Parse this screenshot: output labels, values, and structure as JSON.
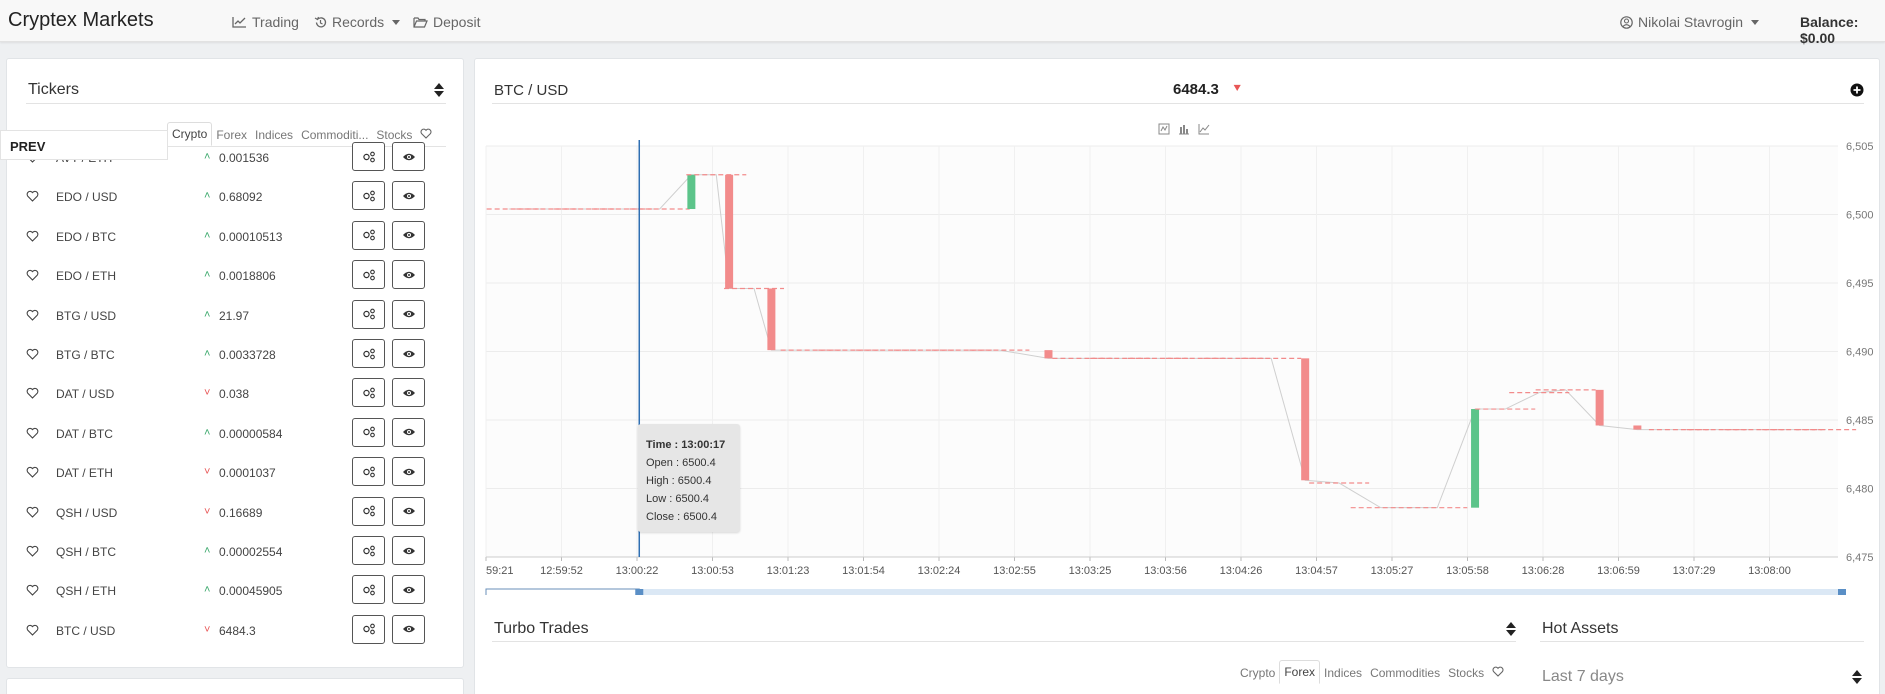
{
  "navbar": {
    "brand": "Cryptex Markets",
    "links": {
      "trading": "Trading",
      "records": "Records",
      "deposit": "Deposit"
    },
    "user": "Nikolai Stavrogin",
    "balance": "Balance: $0.00"
  },
  "tickers_panel": {
    "title": "Tickers",
    "tabs": [
      "Crypto",
      "Forex",
      "Indices",
      "Commoditi...",
      "Stocks"
    ],
    "active_tab": "Crypto",
    "prev_label": "PREV",
    "rows": [
      {
        "symbol": "AVT / ETH",
        "price": "0.001536",
        "direction": "up"
      },
      {
        "symbol": "EDO / USD",
        "price": "0.68092",
        "direction": "up"
      },
      {
        "symbol": "EDO / BTC",
        "price": "0.00010513",
        "direction": "up"
      },
      {
        "symbol": "EDO / ETH",
        "price": "0.0018806",
        "direction": "up"
      },
      {
        "symbol": "BTG / USD",
        "price": "21.97",
        "direction": "up"
      },
      {
        "symbol": "BTG / BTC",
        "price": "0.0033728",
        "direction": "up"
      },
      {
        "symbol": "DAT / USD",
        "price": "0.038",
        "direction": "down"
      },
      {
        "symbol": "DAT / BTC",
        "price": "0.00000584",
        "direction": "up"
      },
      {
        "symbol": "DAT / ETH",
        "price": "0.0001037",
        "direction": "down"
      },
      {
        "symbol": "QSH / USD",
        "price": "0.16689",
        "direction": "down"
      },
      {
        "symbol": "QSH / BTC",
        "price": "0.00002554",
        "direction": "up"
      },
      {
        "symbol": "QSH / ETH",
        "price": "0.00045905",
        "direction": "up"
      },
      {
        "symbol": "BTC / USD",
        "price": "6484.3",
        "direction": "down"
      }
    ]
  },
  "chart_panel": {
    "pair": "BTC / USD",
    "price": "6484.3",
    "price_direction": "down",
    "tooltip": {
      "time": "Time : 13:00:17",
      "open": "Open : 6500.4",
      "high": "High : 6500.4",
      "low": "Low : 6500.4",
      "close": "Close : 6500.4"
    }
  },
  "chart_data": {
    "type": "candlestick",
    "x_ticks": [
      "59:21",
      "12:59:52",
      "13:00:22",
      "13:00:53",
      "13:01:23",
      "13:01:54",
      "13:02:24",
      "13:02:55",
      "13:03:25",
      "13:03:56",
      "13:04:26",
      "13:04:57",
      "13:05:27",
      "13:05:58",
      "13:06:28",
      "13:06:59",
      "13:07:29",
      "13:08:00"
    ],
    "y_ticks": [
      "6,505",
      "6,500",
      "6,495",
      "6,490",
      "6,485",
      "6,480",
      "6,475"
    ],
    "ylim": [
      6475,
      6505
    ],
    "candles": [
      {
        "t": 0.3,
        "o": 6500.4,
        "h": 6500.4,
        "l": 6500.4,
        "c": 6500.4
      },
      {
        "t": 0.8,
        "o": 6500.4,
        "h": 6500.4,
        "l": 6500.4,
        "c": 6500.4
      },
      {
        "t": 1.3,
        "o": 6500.4,
        "h": 6500.4,
        "l": 6500.4,
        "c": 6500.4
      },
      {
        "t": 1.8,
        "o": 6500.4,
        "h": 6500.4,
        "l": 6500.4,
        "c": 6500.4
      },
      {
        "t": 2.3,
        "o": 6500.4,
        "h": 6500.4,
        "l": 6500.4,
        "c": 6500.4
      },
      {
        "t": 2.72,
        "o": 6500.4,
        "h": 6502.9,
        "l": 6500.4,
        "c": 6502.9
      },
      {
        "t": 3.05,
        "o": 6502.9,
        "h": 6502.9,
        "l": 6502.9,
        "c": 6502.9
      },
      {
        "t": 3.22,
        "o": 6502.9,
        "h": 6502.9,
        "l": 6494.6,
        "c": 6494.6
      },
      {
        "t": 3.55,
        "o": 6494.6,
        "h": 6494.6,
        "l": 6494.6,
        "c": 6494.6
      },
      {
        "t": 3.78,
        "o": 6494.6,
        "h": 6494.6,
        "l": 6490.1,
        "c": 6490.1
      },
      {
        "t": 4.3,
        "o": 6490.1,
        "h": 6490.1,
        "l": 6490.1,
        "c": 6490.1
      },
      {
        "t": 4.8,
        "o": 6490.1,
        "h": 6490.1,
        "l": 6490.1,
        "c": 6490.1
      },
      {
        "t": 5.3,
        "o": 6490.1,
        "h": 6490.1,
        "l": 6490.1,
        "c": 6490.1
      },
      {
        "t": 5.8,
        "o": 6490.1,
        "h": 6490.1,
        "l": 6490.1,
        "c": 6490.1
      },
      {
        "t": 6.3,
        "o": 6490.1,
        "h": 6490.1,
        "l": 6490.1,
        "c": 6490.1
      },
      {
        "t": 6.8,
        "o": 6490.1,
        "h": 6490.1,
        "l": 6490.1,
        "c": 6490.1
      },
      {
        "t": 7.45,
        "o": 6490.1,
        "h": 6490.1,
        "l": 6489.5,
        "c": 6489.5
      },
      {
        "t": 7.9,
        "o": 6489.5,
        "h": 6489.5,
        "l": 6489.5,
        "c": 6489.5
      },
      {
        "t": 8.4,
        "o": 6489.5,
        "h": 6489.5,
        "l": 6489.5,
        "c": 6489.5
      },
      {
        "t": 8.9,
        "o": 6489.5,
        "h": 6489.5,
        "l": 6489.5,
        "c": 6489.5
      },
      {
        "t": 9.4,
        "o": 6489.5,
        "h": 6489.5,
        "l": 6489.5,
        "c": 6489.5
      },
      {
        "t": 9.9,
        "o": 6489.5,
        "h": 6489.5,
        "l": 6489.5,
        "c": 6489.5
      },
      {
        "t": 10.4,
        "o": 6489.5,
        "h": 6489.5,
        "l": 6489.5,
        "c": 6489.5
      },
      {
        "t": 10.85,
        "o": 6489.5,
        "h": 6489.5,
        "l": 6480.6,
        "c": 6480.6
      },
      {
        "t": 11.3,
        "o": 6480.4,
        "h": 6480.4,
        "l": 6480.4,
        "c": 6480.4
      },
      {
        "t": 11.85,
        "o": 6478.6,
        "h": 6478.6,
        "l": 6478.6,
        "c": 6478.6
      },
      {
        "t": 12.6,
        "o": 6478.6,
        "h": 6478.6,
        "l": 6478.6,
        "c": 6478.6
      },
      {
        "t": 13.1,
        "o": 6478.6,
        "h": 6485.8,
        "l": 6478.6,
        "c": 6485.8
      },
      {
        "t": 13.5,
        "o": 6485.8,
        "h": 6485.8,
        "l": 6485.8,
        "c": 6485.8
      },
      {
        "t": 13.95,
        "o": 6487.0,
        "h": 6487.0,
        "l": 6487.0,
        "c": 6487.0
      },
      {
        "t": 14.3,
        "o": 6487.0,
        "h": 6487.2,
        "l": 6487.0,
        "c": 6487.2
      },
      {
        "t": 14.75,
        "o": 6487.2,
        "h": 6487.2,
        "l": 6484.6,
        "c": 6484.6
      },
      {
        "t": 15.25,
        "o": 6484.6,
        "h": 6484.6,
        "l": 6484.3,
        "c": 6484.3
      },
      {
        "t": 15.8,
        "o": 6484.3,
        "h": 6484.3,
        "l": 6484.3,
        "c": 6484.3
      },
      {
        "t": 16.3,
        "o": 6484.3,
        "h": 6484.3,
        "l": 6484.3,
        "c": 6484.3
      },
      {
        "t": 16.8,
        "o": 6484.3,
        "h": 6484.3,
        "l": 6484.3,
        "c": 6484.3
      },
      {
        "t": 17.3,
        "o": 6484.3,
        "h": 6484.3,
        "l": 6484.3,
        "c": 6484.3
      },
      {
        "t": 17.75,
        "o": 6484.3,
        "h": 6484.3,
        "l": 6484.3,
        "c": 6484.3
      }
    ],
    "crosshair_tick": 2.03,
    "colors": {
      "up": "#5cc48a",
      "down": "#f28b8b",
      "crosshair": "#2f6fb2"
    }
  },
  "turbo_panel": {
    "title": "Turbo Trades",
    "tabs": [
      "Crypto",
      "Forex",
      "Indices",
      "Commodities",
      "Stocks"
    ],
    "active_tab": "Forex"
  },
  "hot_assets_panel": {
    "title": "Hot Assets",
    "range": "Last 7 days"
  }
}
